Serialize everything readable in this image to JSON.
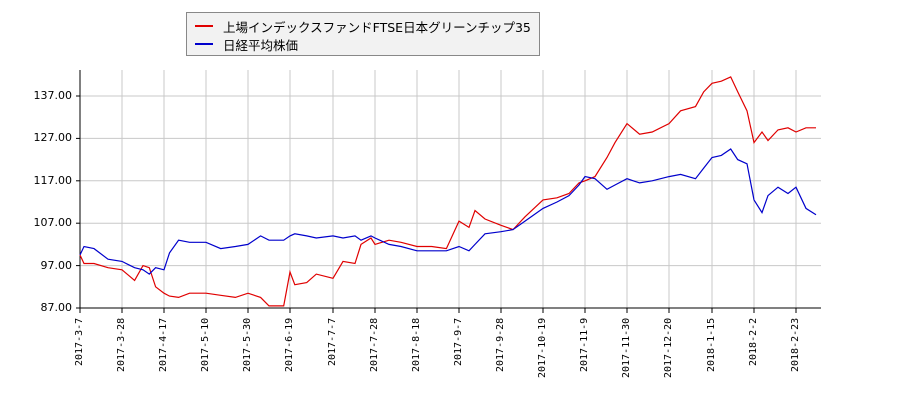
{
  "chart_data": {
    "type": "line",
    "title": "",
    "xlabel": "",
    "ylabel": "",
    "ylim": [
      87,
      142
    ],
    "grid": true,
    "legend_position": "top-left (above plot)",
    "y_ticks": [
      "87.00",
      "97.00",
      "107.00",
      "117.00",
      "127.00",
      "137.00"
    ],
    "x_ticks": [
      "2017-3-7",
      "2017-3-28",
      "2017-4-17",
      "2017-5-10",
      "2017-5-30",
      "2017-6-19",
      "2017-7-7",
      "2017-7-28",
      "2017-8-18",
      "2017-9-7",
      "2017-9-28",
      "2017-10-19",
      "2017-11-9",
      "2017-11-30",
      "2017-12-20",
      "2018-1-15",
      "2018-2-2",
      "2018-2-23"
    ],
    "series": [
      {
        "name": "上場インデックスファンドFTSE日本グリーンチップ35",
        "color": "#e00000",
        "x": [
          "2017-3-7",
          "2017-3-9",
          "2017-3-14",
          "2017-3-21",
          "2017-3-28",
          "2017-4-3",
          "2017-4-7",
          "2017-4-10",
          "2017-4-13",
          "2017-4-17",
          "2017-4-20",
          "2017-4-25",
          "2017-5-1",
          "2017-5-10",
          "2017-5-17",
          "2017-5-24",
          "2017-5-30",
          "2017-6-5",
          "2017-6-9",
          "2017-6-13",
          "2017-6-16",
          "2017-6-19",
          "2017-6-21",
          "2017-6-26",
          "2017-6-30",
          "2017-7-7",
          "2017-7-12",
          "2017-7-18",
          "2017-7-21",
          "2017-7-26",
          "2017-7-28",
          "2017-8-4",
          "2017-8-10",
          "2017-8-18",
          "2017-8-25",
          "2017-9-1",
          "2017-9-7",
          "2017-9-12",
          "2017-9-15",
          "2017-9-20",
          "2017-9-28",
          "2017-10-4",
          "2017-10-10",
          "2017-10-19",
          "2017-10-26",
          "2017-11-1",
          "2017-11-6",
          "2017-11-9",
          "2017-11-14",
          "2017-11-20",
          "2017-11-24",
          "2017-11-30",
          "2017-12-6",
          "2017-12-12",
          "2017-12-20",
          "2017-12-27",
          "2018-1-5",
          "2018-1-10",
          "2018-1-15",
          "2018-1-19",
          "2018-1-23",
          "2018-1-26",
          "2018-1-30",
          "2018-2-2",
          "2018-2-6",
          "2018-2-9",
          "2018-2-14",
          "2018-2-19",
          "2018-2-23",
          "2018-2-28",
          "2018-3-5"
        ],
        "values": [
          99.5,
          97.5,
          97.5,
          96.5,
          96.0,
          93.5,
          97.0,
          96.5,
          92.0,
          90.5,
          89.8,
          89.5,
          90.5,
          90.5,
          90.0,
          89.5,
          90.5,
          89.5,
          87.5,
          87.5,
          87.5,
          95.5,
          92.5,
          93.0,
          95.0,
          94.0,
          98.0,
          97.5,
          102.0,
          103.5,
          102.0,
          103.0,
          102.5,
          101.5,
          101.5,
          101.0,
          107.5,
          106.0,
          110.0,
          108.0,
          106.5,
          105.5,
          108.5,
          112.5,
          113.0,
          114.0,
          116.5,
          117.0,
          118.0,
          122.5,
          126.0,
          130.5,
          128.0,
          128.5,
          130.5,
          133.5,
          134.5,
          138.0,
          140.0,
          140.5,
          141.5,
          138.0,
          133.5,
          126.0,
          128.5,
          126.5,
          129.0,
          129.5,
          128.5,
          129.5,
          129.5
        ]
      },
      {
        "name": "日経平均株価",
        "color": "#0000cc",
        "x": [
          "2017-3-7",
          "2017-3-9",
          "2017-3-14",
          "2017-3-21",
          "2017-3-28",
          "2017-4-3",
          "2017-4-7",
          "2017-4-10",
          "2017-4-13",
          "2017-4-17",
          "2017-4-20",
          "2017-4-25",
          "2017-5-1",
          "2017-5-10",
          "2017-5-17",
          "2017-5-24",
          "2017-5-30",
          "2017-6-5",
          "2017-6-9",
          "2017-6-13",
          "2017-6-16",
          "2017-6-19",
          "2017-6-21",
          "2017-6-26",
          "2017-6-30",
          "2017-7-7",
          "2017-7-12",
          "2017-7-18",
          "2017-7-21",
          "2017-7-26",
          "2017-7-28",
          "2017-8-4",
          "2017-8-10",
          "2017-8-18",
          "2017-8-25",
          "2017-9-1",
          "2017-9-7",
          "2017-9-12",
          "2017-9-15",
          "2017-9-20",
          "2017-9-28",
          "2017-10-4",
          "2017-10-10",
          "2017-10-19",
          "2017-10-26",
          "2017-11-1",
          "2017-11-6",
          "2017-11-9",
          "2017-11-14",
          "2017-11-20",
          "2017-11-24",
          "2017-11-30",
          "2017-12-6",
          "2017-12-12",
          "2017-12-20",
          "2017-12-27",
          "2018-1-5",
          "2018-1-10",
          "2018-1-15",
          "2018-1-19",
          "2018-1-23",
          "2018-1-26",
          "2018-1-30",
          "2018-2-2",
          "2018-2-6",
          "2018-2-9",
          "2018-2-14",
          "2018-2-19",
          "2018-2-23",
          "2018-2-28",
          "2018-3-5"
        ],
        "values": [
          99.5,
          101.5,
          101.0,
          98.5,
          98.0,
          96.5,
          96.0,
          95.0,
          96.5,
          96.0,
          100.0,
          103.0,
          102.5,
          102.5,
          101.0,
          101.5,
          102.0,
          104.0,
          103.0,
          103.0,
          103.0,
          104.0,
          104.5,
          104.0,
          103.5,
          104.0,
          103.5,
          104.0,
          103.0,
          104.0,
          103.5,
          102.0,
          101.5,
          100.5,
          100.5,
          100.5,
          101.5,
          100.5,
          102.0,
          104.5,
          105.0,
          105.5,
          107.5,
          110.5,
          112.0,
          113.5,
          116.0,
          118.0,
          117.5,
          115.0,
          116.0,
          117.5,
          116.5,
          117.0,
          118.0,
          118.5,
          117.5,
          120.0,
          122.5,
          123.0,
          124.5,
          122.0,
          121.0,
          112.5,
          109.5,
          113.5,
          115.5,
          114.0,
          115.5,
          110.5,
          109.0
        ]
      }
    ]
  },
  "legend": {
    "items": [
      {
        "label": "上場インデックスファンドFTSE日本グリーンチップ35",
        "color": "#e00000"
      },
      {
        "label": "日経平均株価",
        "color": "#0000cc"
      }
    ]
  }
}
